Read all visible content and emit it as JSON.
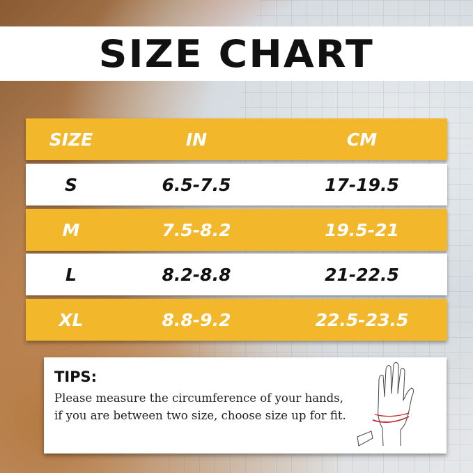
{
  "title": "SIZE CHART",
  "header": [
    "SIZE",
    "IN",
    "CM"
  ],
  "rows": [
    {
      "size": "S",
      "in": "6.5-7.5",
      "cm": "17-19.5"
    },
    {
      "size": "M",
      "in": "7.5-8.2",
      "cm": "19.5-21"
    },
    {
      "size": "L",
      "in": "8.2-8.8",
      "cm": "21-22.5"
    },
    {
      "size": "XL",
      "in": "8.8-9.2",
      "cm": "22.5-23.5"
    }
  ],
  "tips": {
    "heading": "TIPS:",
    "text": "Please measure the circumference of your hands, if you are between two size, choose size up for fit."
  },
  "colors": {
    "accent": "#f2b72a",
    "row_white": "#ffffff",
    "measure_line": "#c0282d"
  },
  "icons": [
    "hand-measure-icon"
  ]
}
